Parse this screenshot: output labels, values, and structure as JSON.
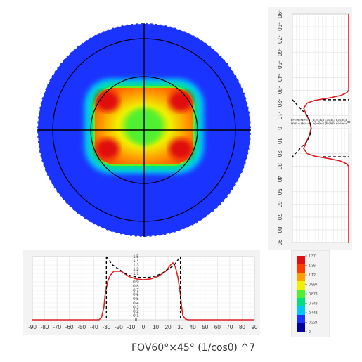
{
  "chart_data": [
    {
      "type": "heatmap",
      "description_of_map": "polar intensity map",
      "ring_angles_deg": [
        30,
        60,
        90
      ],
      "background_color": "#1a33ff",
      "colors": [
        "#1a33ff",
        "#00c8ff",
        "#00e080",
        "#50f030",
        "#f0f000",
        "#ffa000",
        "#ff3c00",
        "#e01010"
      ]
    },
    {
      "type": "line",
      "orientation": "vertical",
      "ytick_labels": [
        "-90",
        "-80",
        "-70",
        "-60",
        "-50",
        "-40",
        "-30",
        "-20",
        "-10",
        "0",
        "10",
        "20",
        "30",
        "40",
        "50",
        "60",
        "70",
        "80",
        "90"
      ],
      "value_tick_labels": [
        "0",
        "0.1",
        "0.2",
        "0.3",
        "0.4",
        "0.5",
        "0.6",
        "0.7",
        "0.8",
        "0.9",
        "1",
        "1.1",
        "1.2",
        "1.3",
        "1.4",
        "1.5"
      ],
      "angle_range": [
        -90,
        90
      ],
      "value_range": [
        0,
        1.5
      ],
      "series": [
        {
          "style": "solid",
          "color": "#e02020",
          "points": [
            [
              -90,
              0
            ],
            [
              -30,
              0
            ],
            [
              -28,
              0.05
            ],
            [
              -26,
              0.2
            ],
            [
              -24,
              0.5
            ],
            [
              -22,
              0.9
            ],
            [
              -20,
              1.1
            ],
            [
              -16,
              1.2
            ],
            [
              -12,
              1.15
            ],
            [
              -6,
              1.05
            ],
            [
              0,
              1.0
            ],
            [
              6,
              1.05
            ],
            [
              12,
              1.15
            ],
            [
              16,
              1.2
            ],
            [
              20,
              1.1
            ],
            [
              22,
              0.9
            ],
            [
              24,
              0.5
            ],
            [
              26,
              0.2
            ],
            [
              28,
              0.05
            ],
            [
              30,
              0
            ],
            [
              90,
              0
            ]
          ]
        },
        {
          "style": "dashed",
          "color": "#000000",
          "points": [
            [
              -22.5,
              1.5
            ],
            [
              -16,
              1.3
            ],
            [
              -10,
              1.1
            ],
            [
              -5,
              1.03
            ],
            [
              0,
              1.0
            ],
            [
              5,
              1.03
            ],
            [
              10,
              1.1
            ],
            [
              16,
              1.3
            ],
            [
              22.5,
              1.5
            ]
          ],
          "limits": [
            -22.5,
            22.5
          ]
        }
      ]
    },
    {
      "type": "line",
      "orientation": "horizontal",
      "xtick_labels": [
        "-90",
        "-80",
        "-70",
        "-60",
        "-50",
        "-40",
        "-30",
        "-20",
        "-10",
        "0",
        "10",
        "20",
        "30",
        "40",
        "50",
        "60",
        "70",
        "80",
        "90"
      ],
      "value_tick_labels": [
        "0",
        "0.1",
        "0.2",
        "0.3",
        "0.4",
        "0.5",
        "0.6",
        "0.7",
        "0.8",
        "0.9",
        "1",
        "1.1",
        "1.2",
        "1.3",
        "1.4",
        "1.5"
      ],
      "angle_range": [
        -90,
        90
      ],
      "value_range": [
        0,
        1.5
      ],
      "series": [
        {
          "style": "solid",
          "color": "#e02020",
          "points": [
            [
              -90,
              0
            ],
            [
              -36,
              0
            ],
            [
              -34,
              0.05
            ],
            [
              -32,
              0.3
            ],
            [
              -31,
              0.6
            ],
            [
              -29,
              0.9
            ],
            [
              -27,
              1.05
            ],
            [
              -24,
              1.15
            ],
            [
              -18,
              1.15
            ],
            [
              -12,
              1.03
            ],
            [
              -6,
              0.97
            ],
            [
              0,
              0.95
            ],
            [
              6,
              0.97
            ],
            [
              12,
              1.03
            ],
            [
              18,
              1.15
            ],
            [
              22,
              1.3
            ],
            [
              24,
              1.35
            ],
            [
              26,
              1.25
            ],
            [
              28,
              1.0
            ],
            [
              30,
              0.6
            ],
            [
              31,
              0.3
            ],
            [
              32,
              0.1
            ],
            [
              34,
              0.02
            ],
            [
              36,
              0
            ],
            [
              90,
              0
            ]
          ]
        },
        {
          "style": "dashed",
          "color": "#000000",
          "points": [
            [
              -30,
              1.5
            ],
            [
              -25,
              1.3
            ],
            [
              -20,
              1.2
            ],
            [
              -15,
              1.1
            ],
            [
              -10,
              1.04
            ],
            [
              -5,
              1.01
            ],
            [
              0,
              1.0
            ],
            [
              5,
              1.01
            ],
            [
              10,
              1.04
            ],
            [
              15,
              1.1
            ],
            [
              20,
              1.2
            ],
            [
              25,
              1.3
            ],
            [
              30,
              1.5
            ]
          ],
          "limits": [
            -30,
            30
          ]
        }
      ]
    },
    {
      "type": "colorbar",
      "tick_labels": [
        "1.37",
        "1.36",
        "1.12",
        "0.997",
        "0.873",
        "0.748",
        "0.448",
        "0.224",
        "0"
      ],
      "colors": [
        "#e01010",
        "#ff3c00",
        "#ffa000",
        "#f0f000",
        "#50f030",
        "#00e080",
        "#00c8ff",
        "#1a33ff",
        "#0000a0"
      ]
    }
  ],
  "caption": "FOV60°×45° (1/cosθ) ^7"
}
